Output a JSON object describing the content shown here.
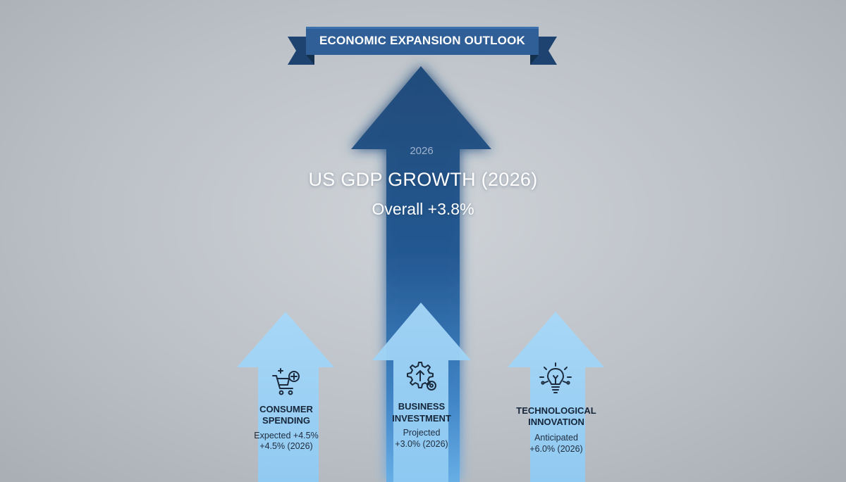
{
  "banner": {
    "title": "ECONOMIC EXPANSION OUTLOOK"
  },
  "main": {
    "year": "2026",
    "title": "US GDP GROWTH (2026)",
    "subtitle": "Overall +3.8%"
  },
  "pillars": [
    {
      "icon": "shopping-cart-plus-icon",
      "title_line1": "CONSUMER",
      "title_line2": "SPENDING",
      "desc_line1": "Expected +4.5%",
      "desc_line2": "+4.5% (2026)"
    },
    {
      "icon": "gear-upload-icon",
      "title_line1": "BUSINESS",
      "title_line2": "INVESTMENT",
      "desc_line1": "Projected",
      "desc_line2": "+3.0% (2026)"
    },
    {
      "icon": "lightbulb-circuit-icon",
      "title_line1": "TECHNOLOGICAL",
      "title_line2": "INNOVATION",
      "desc_line1": "Anticipated",
      "desc_line2": "+6.0% (2026)"
    }
  ],
  "colors": {
    "banner": "#2f5f96",
    "banner_fold": "#1e4370",
    "main_arrow": "#1e4d7d",
    "pillar_arrow": "#9fd3f7"
  }
}
